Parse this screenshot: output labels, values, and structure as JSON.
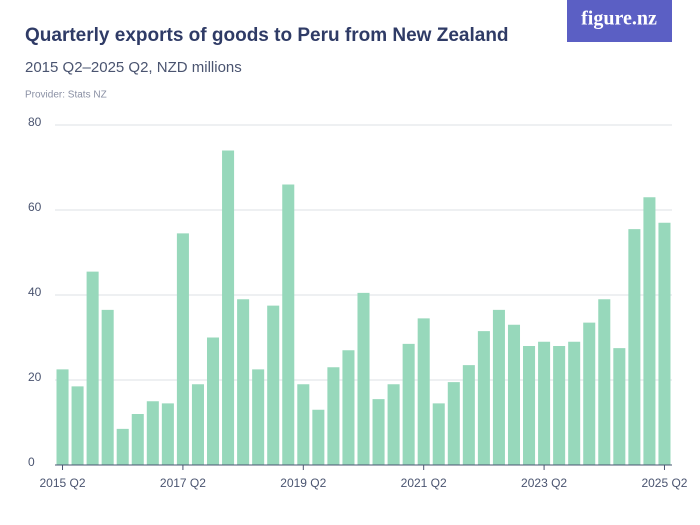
{
  "chart_data": {
    "type": "bar",
    "title": "Quarterly exports of goods to Peru from New Zealand",
    "subtitle": "2015 Q2–2025 Q2, NZD millions",
    "provider": "Provider: Stats NZ",
    "brand": "figure.nz",
    "categories": [
      "2015 Q2",
      null,
      null,
      null,
      null,
      null,
      null,
      null,
      "2017 Q2",
      null,
      null,
      null,
      null,
      null,
      null,
      null,
      "2019 Q2",
      null,
      null,
      null,
      null,
      null,
      null,
      null,
      "2021 Q2",
      null,
      null,
      null,
      null,
      null,
      null,
      null,
      "2023 Q2",
      null,
      null,
      null,
      null,
      null,
      null,
      null,
      "2025 Q2"
    ],
    "values": [
      22.5,
      18.5,
      45.5,
      36.5,
      8.5,
      12,
      15,
      14.5,
      54.5,
      19,
      30,
      74,
      39,
      22.5,
      37.5,
      66,
      19,
      13,
      23,
      27,
      40.5,
      15.5,
      19,
      28.5,
      34.5,
      14.5,
      19.5,
      23.5,
      31.5,
      36.5,
      33,
      28,
      29,
      28,
      29,
      33.5,
      39,
      27.5,
      55.5,
      63,
      57
    ],
    "color": "#97d8bb",
    "ylim": [
      0,
      80
    ],
    "yticks": [
      0,
      20,
      40,
      60,
      80
    ],
    "grid": true
  }
}
